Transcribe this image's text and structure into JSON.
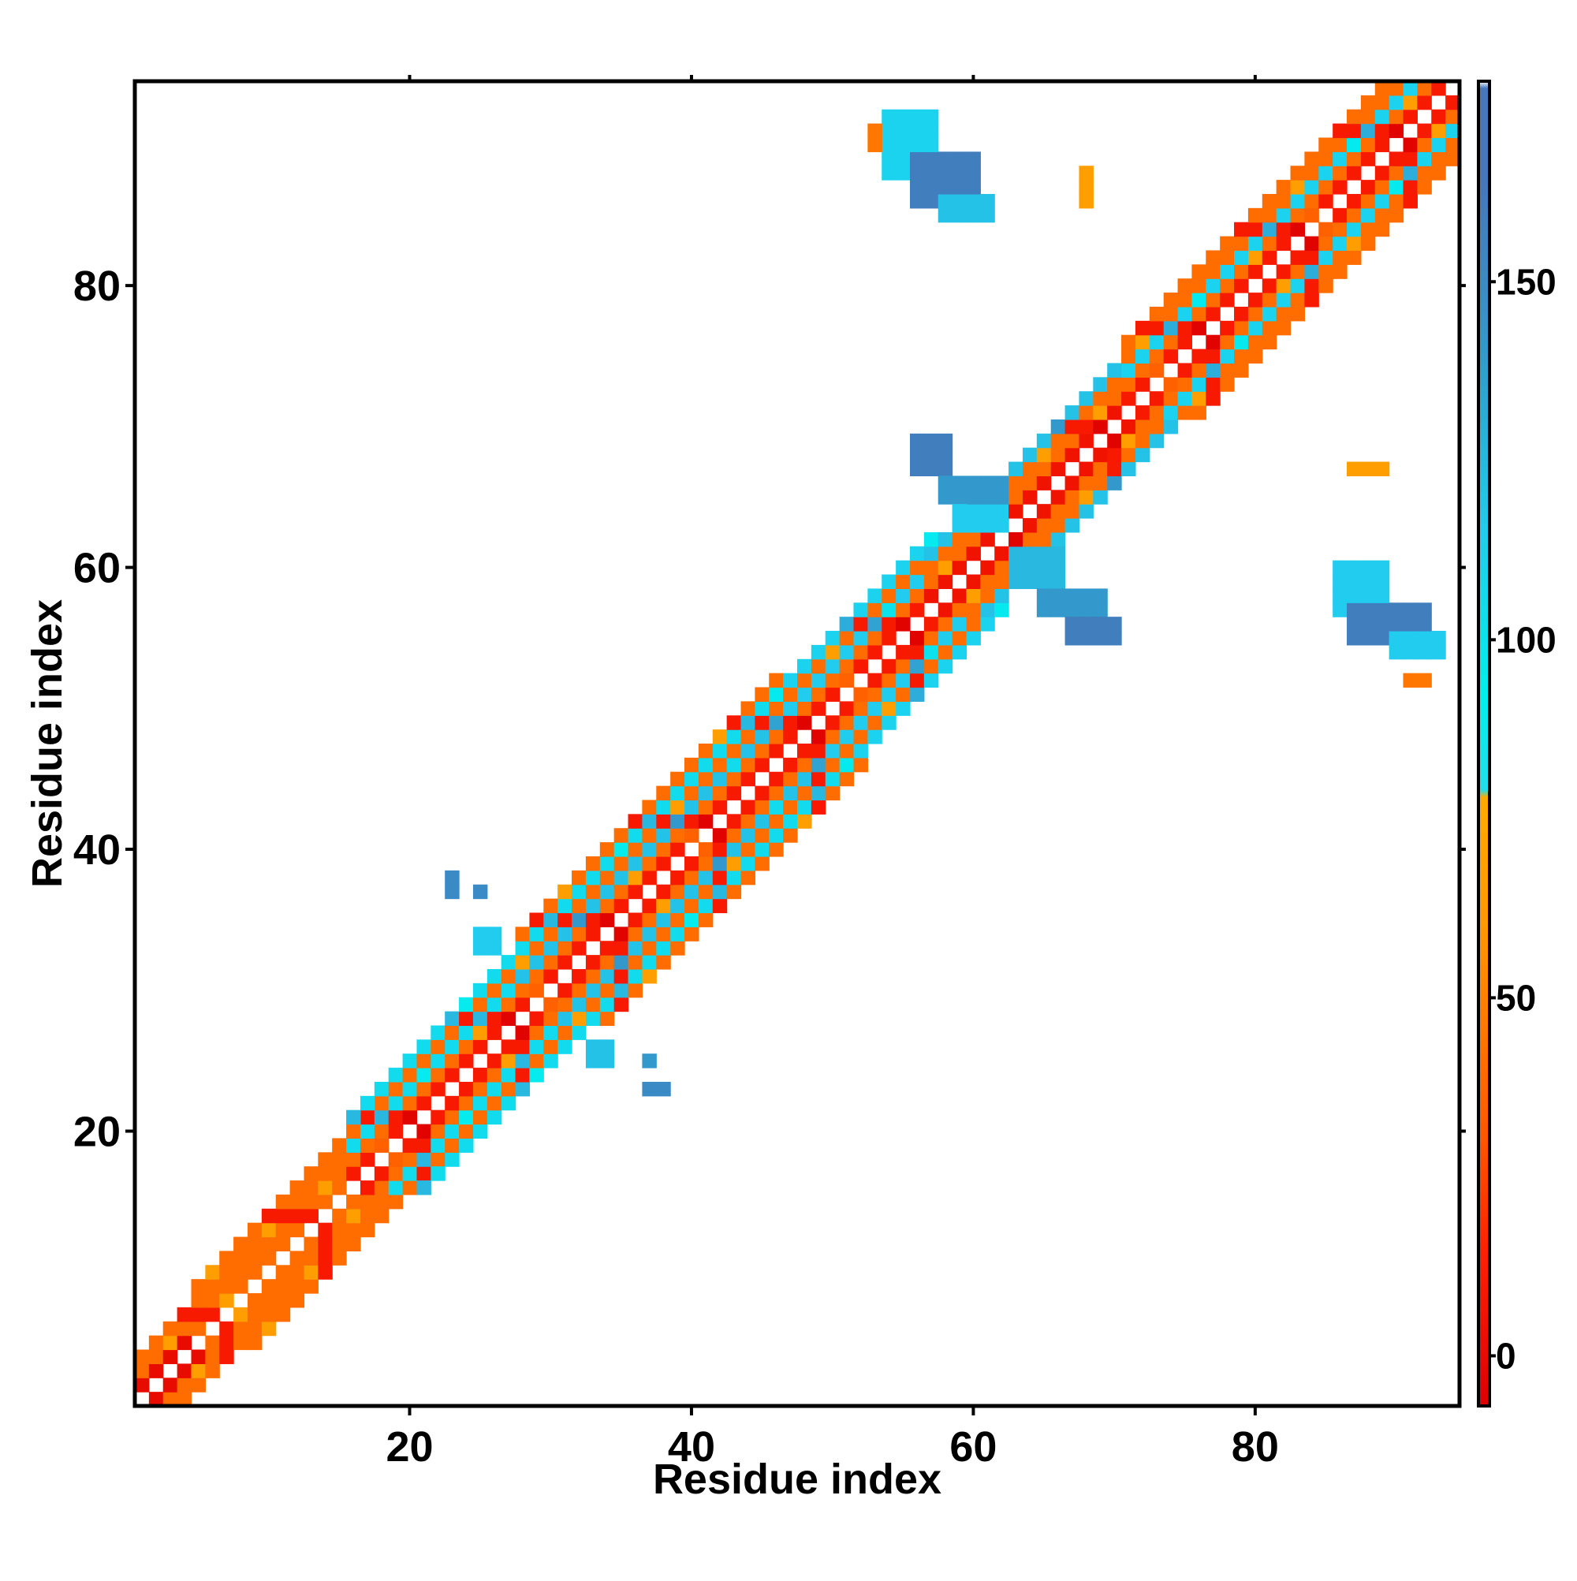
{
  "chart_data": {
    "type": "heatmap",
    "title": "",
    "xlabel": "Residue index",
    "ylabel": "Residue index",
    "xlim": [
      0.5,
      94.5
    ],
    "ylim": [
      0.5,
      94.5
    ],
    "x_ticks": [
      {
        "value": 20,
        "label": "20"
      },
      {
        "value": 40,
        "label": "40"
      },
      {
        "value": 60,
        "label": "60"
      },
      {
        "value": 80,
        "label": "80"
      }
    ],
    "y_ticks": [
      {
        "value": 20,
        "label": "20"
      },
      {
        "value": 40,
        "label": "40"
      },
      {
        "value": 60,
        "label": "60"
      },
      {
        "value": 80,
        "label": "80"
      }
    ],
    "grid": false,
    "legend": {
      "type": "colorbar",
      "placement": "right",
      "range": [
        -7,
        178
      ],
      "ticks": [
        {
          "value": 0,
          "label": "0"
        },
        {
          "value": 50,
          "label": "50"
        },
        {
          "value": 100,
          "label": "100"
        },
        {
          "value": 150,
          "label": "150"
        }
      ],
      "color_stops": [
        {
          "value": -7,
          "color": "#dd0000"
        },
        {
          "value": 15,
          "color": "#ff2200"
        },
        {
          "value": 30,
          "color": "#ff5500"
        },
        {
          "value": 45,
          "color": "#ff7700"
        },
        {
          "value": 60,
          "color": "#ff9900"
        },
        {
          "value": 78,
          "color": "#ffaa00"
        },
        {
          "value": 79,
          "color": "#22ddee"
        },
        {
          "value": 92,
          "color": "#00eeee"
        },
        {
          "value": 115,
          "color": "#22ccee"
        },
        {
          "value": 140,
          "color": "#3399cc"
        },
        {
          "value": 165,
          "color": "#4477bb"
        },
        {
          "value": 177,
          "color": "#4477bb"
        },
        {
          "value": 178,
          "color": "#ffffff"
        }
      ]
    },
    "colors": {
      "red": "#ee1100",
      "orange": "#ff6600",
      "amber": "#ffa500",
      "cyan": "#22ccdd",
      "bright_cyan": "#00eeee",
      "steel_blue": "#4488c4",
      "mid_blue": "#3aaed8"
    },
    "bands": [
      {
        "start": 1,
        "end": 5,
        "offsets": [
          1,
          2,
          3
        ],
        "values": [
          0,
          40,
          40
        ]
      },
      {
        "start": 5,
        "end": 18,
        "offsets": [
          1,
          2,
          3,
          4
        ],
        "values": [
          40,
          40,
          40,
          40
        ]
      },
      {
        "start": 16,
        "end": 28,
        "offsets": [
          1,
          2,
          3,
          4,
          5
        ],
        "values": [
          10,
          40,
          105,
          40,
          105
        ]
      },
      {
        "start": 28,
        "end": 46,
        "offsets": [
          1,
          2,
          3,
          4,
          5,
          6
        ],
        "values": [
          10,
          40,
          120,
          40,
          105,
          40
        ]
      },
      {
        "start": 46,
        "end": 57,
        "offsets": [
          1,
          2,
          3,
          4,
          5
        ],
        "values": [
          10,
          40,
          115,
          40,
          110
        ]
      },
      {
        "start": 57,
        "end": 71,
        "offsets": [
          1,
          2,
          3,
          4
        ],
        "values": [
          5,
          40,
          40,
          120
        ]
      },
      {
        "start": 71,
        "end": 94,
        "offsets": [
          1,
          2,
          3,
          4,
          5
        ],
        "values": [
          10,
          40,
          110,
          40,
          40
        ]
      }
    ],
    "blocks": [
      {
        "i0": 54,
        "i1": 57,
        "j0": 88,
        "j1": 92,
        "value": 110
      },
      {
        "i0": 56,
        "i1": 60,
        "j0": 86,
        "j1": 89,
        "value": 160
      },
      {
        "i0": 58,
        "i1": 61,
        "j0": 85,
        "j1": 86,
        "value": 120
      },
      {
        "i0": 53,
        "i1": 53,
        "j0": 90,
        "j1": 91,
        "value": 45
      },
      {
        "i0": 68,
        "i1": 68,
        "j0": 86,
        "j1": 88,
        "value": 65
      },
      {
        "i0": 56,
        "i1": 58,
        "j0": 67,
        "j1": 69,
        "value": 160
      },
      {
        "i0": 58,
        "i1": 62,
        "j0": 65,
        "j1": 66,
        "value": 140
      },
      {
        "i0": 59,
        "i1": 62,
        "j0": 63,
        "j1": 64,
        "value": 115
      },
      {
        "i0": 63,
        "i1": 66,
        "j0": 59,
        "j1": 61,
        "value": 125
      },
      {
        "i0": 65,
        "i1": 69,
        "j0": 57,
        "j1": 58,
        "value": 140
      },
      {
        "i0": 67,
        "i1": 70,
        "j0": 55,
        "j1": 56,
        "value": 160
      },
      {
        "i0": 86,
        "i1": 89,
        "j0": 57,
        "j1": 60,
        "value": 115
      },
      {
        "i0": 87,
        "i1": 92,
        "j0": 55,
        "j1": 57,
        "value": 160
      },
      {
        "i0": 90,
        "i1": 93,
        "j0": 54,
        "j1": 55,
        "value": 115
      },
      {
        "i0": 91,
        "i1": 92,
        "j0": 52,
        "j1": 52,
        "value": 45
      },
      {
        "i0": 87,
        "i1": 89,
        "j0": 67,
        "j1": 67,
        "value": 65
      },
      {
        "i0": 23,
        "i1": 23,
        "j0": 37,
        "j1": 38,
        "value": 150
      },
      {
        "i0": 25,
        "i1": 25,
        "j0": 37,
        "j1": 37,
        "value": 150
      },
      {
        "i0": 25,
        "i1": 26,
        "j0": 33,
        "j1": 34,
        "value": 115
      },
      {
        "i0": 33,
        "i1": 34,
        "j0": 25,
        "j1": 26,
        "value": 120
      },
      {
        "i0": 37,
        "i1": 37,
        "j0": 25,
        "j1": 25,
        "value": 140
      },
      {
        "i0": 37,
        "i1": 38,
        "j0": 23,
        "j1": 23,
        "value": 150
      }
    ]
  }
}
